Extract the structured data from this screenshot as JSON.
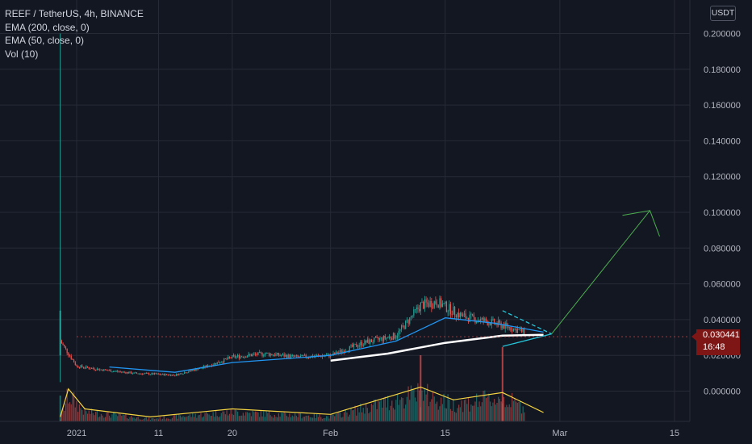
{
  "legend": {
    "symbol": "REEF / TetherUS, 4h, BINANCE",
    "ema200": "EMA (200, close, 0)",
    "ema50": "EMA (50, close, 0)",
    "vol": "Vol (10)"
  },
  "currency_button": "USDT",
  "price_label": {
    "price": "0.030441",
    "countdown": "16:48"
  },
  "colors": {
    "background": "#131722",
    "grid": "#262a36",
    "up": "#26a69a",
    "down": "#ef5350",
    "ema50": "#2196f3",
    "ema200": "#ffffff",
    "volume_ma": "#f5d442",
    "trendline": "#26c6da",
    "projection_arrow": "#4caf50",
    "price_label_bg": "#7f1616"
  },
  "chart_data": {
    "type": "candlestick",
    "y_ticks": [
      "0.200000",
      "0.180000",
      "0.160000",
      "0.140000",
      "0.120000",
      "0.100000",
      "0.080000",
      "0.060000",
      "0.040000",
      "0.020000",
      "0.000000"
    ],
    "x_ticks": [
      "2021",
      "11",
      "20",
      "Feb",
      "15",
      "Mar",
      "15"
    ],
    "ylim": [
      -0.008,
      0.21
    ],
    "last_price": 0.030441,
    "spike": {
      "date": "2020-12-30",
      "low": 0.005,
      "high": 0.2
    },
    "price_path": [
      {
        "date": "2020-12-30",
        "price": 0.028
      },
      {
        "date": "2021-01-01",
        "price": 0.014
      },
      {
        "date": "2021-01-04",
        "price": 0.012
      },
      {
        "date": "2021-01-08",
        "price": 0.01
      },
      {
        "date": "2021-01-13",
        "price": 0.009
      },
      {
        "date": "2021-01-17",
        "price": 0.014
      },
      {
        "date": "2021-01-20",
        "price": 0.019
      },
      {
        "date": "2021-01-24",
        "price": 0.021
      },
      {
        "date": "2021-01-28",
        "price": 0.019
      },
      {
        "date": "2021-02-01",
        "price": 0.02
      },
      {
        "date": "2021-02-05",
        "price": 0.027
      },
      {
        "date": "2021-02-09",
        "price": 0.031
      },
      {
        "date": "2021-02-12",
        "price": 0.048
      },
      {
        "date": "2021-02-14",
        "price": 0.05
      },
      {
        "date": "2021-02-17",
        "price": 0.042
      },
      {
        "date": "2021-02-21",
        "price": 0.038
      },
      {
        "date": "2021-02-24",
        "price": 0.034
      },
      {
        "date": "2021-02-27",
        "price": 0.03
      }
    ],
    "ema50_path": [
      {
        "date": "2021-01-05",
        "price": 0.0135
      },
      {
        "date": "2021-01-13",
        "price": 0.0105
      },
      {
        "date": "2021-01-20",
        "price": 0.016
      },
      {
        "date": "2021-02-01",
        "price": 0.02
      },
      {
        "date": "2021-02-09",
        "price": 0.028
      },
      {
        "date": "2021-02-15",
        "price": 0.041
      },
      {
        "date": "2021-02-21",
        "price": 0.038
      },
      {
        "date": "2021-02-27",
        "price": 0.033
      }
    ],
    "ema200_path": [
      {
        "date": "2021-02-01",
        "price": 0.017
      },
      {
        "date": "2021-02-08",
        "price": 0.021
      },
      {
        "date": "2021-02-15",
        "price": 0.027
      },
      {
        "date": "2021-02-22",
        "price": 0.031
      },
      {
        "date": "2021-02-27",
        "price": 0.0315
      }
    ],
    "volume_ma_path": [
      {
        "date": "2020-12-30",
        "level": 0.08
      },
      {
        "date": "2020-12-31",
        "level": 0.85
      },
      {
        "date": "2021-01-02",
        "level": 0.3
      },
      {
        "date": "2021-01-10",
        "level": 0.08
      },
      {
        "date": "2021-01-20",
        "level": 0.3
      },
      {
        "date": "2021-02-01",
        "level": 0.15
      },
      {
        "date": "2021-02-12",
        "level": 0.9
      },
      {
        "date": "2021-02-16",
        "level": 0.55
      },
      {
        "date": "2021-02-22",
        "level": 0.75
      },
      {
        "date": "2021-02-27",
        "level": 0.2
      }
    ],
    "triangle": {
      "upper": [
        {
          "date": "2021-02-22",
          "price": 0.045
        },
        {
          "date": "2021-02-28",
          "price": 0.032
        }
      ],
      "lower": [
        {
          "date": "2021-02-22",
          "price": 0.025
        },
        {
          "date": "2021-02-28",
          "price": 0.032
        }
      ]
    },
    "projection": [
      {
        "date": "2021-02-28",
        "price": 0.032
      },
      {
        "date": "2021-03-12",
        "price": 0.101
      }
    ]
  }
}
